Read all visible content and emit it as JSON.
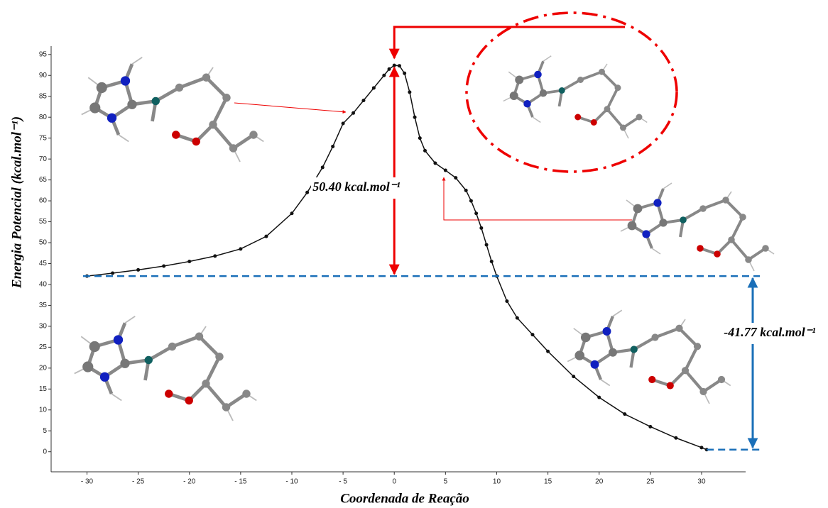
{
  "chart_data": {
    "type": "scatter",
    "xlabel": "Coordenada de Reação",
    "ylabel": "Energia Potencial (kcal.mol⁻¹)",
    "xlim": [
      -33.5,
      34.3
    ],
    "ylim": [
      -4.8,
      97
    ],
    "xticks": [
      {
        "value": -30,
        "label": "- 30"
      },
      {
        "value": -25,
        "label": "- 25"
      },
      {
        "value": -20,
        "label": "- 20"
      },
      {
        "value": -15,
        "label": "- 15"
      },
      {
        "value": -10,
        "label": "- 10"
      },
      {
        "value": -5,
        "label": "- 5"
      },
      0,
      5,
      10,
      15,
      20,
      25,
      30
    ],
    "yticks": [
      0,
      5,
      10,
      15,
      20,
      25,
      30,
      35,
      40,
      45,
      50,
      55,
      60,
      65,
      70,
      75,
      80,
      85,
      90,
      95
    ],
    "series": [
      {
        "color": "#111111",
        "x": [
          -30,
          -27.5,
          -25,
          -22.5,
          -20,
          -17.5,
          -15,
          -12.5,
          -10,
          -8.5,
          -7,
          -6,
          -5,
          -4,
          -3,
          -2,
          -1,
          -0.5,
          0,
          0.5,
          1,
          1.5,
          2,
          2.5,
          3,
          4,
          5,
          6,
          7,
          7.5,
          8,
          8.5,
          9,
          9.5,
          10,
          11,
          12,
          13.5,
          15,
          17.5,
          20,
          22.5,
          25,
          27.5,
          30,
          30.5
        ],
        "values": [
          42,
          42.7,
          43.5,
          44.4,
          45.5,
          46.8,
          48.5,
          51.5,
          57,
          62,
          68,
          73,
          78.5,
          81,
          84,
          87,
          90,
          91.5,
          92.4,
          92.3,
          90.5,
          86,
          80,
          75,
          72,
          69,
          67.3,
          65.5,
          62.5,
          60,
          57,
          53.5,
          49.5,
          45.5,
          42,
          36,
          32,
          28,
          24,
          18,
          13,
          9,
          6,
          3.3,
          1,
          0.5
        ]
      }
    ],
    "annotations": [
      "50.40 kcal.mol⁻¹",
      "-41.77 kcal.mol⁻¹"
    ]
  }
}
